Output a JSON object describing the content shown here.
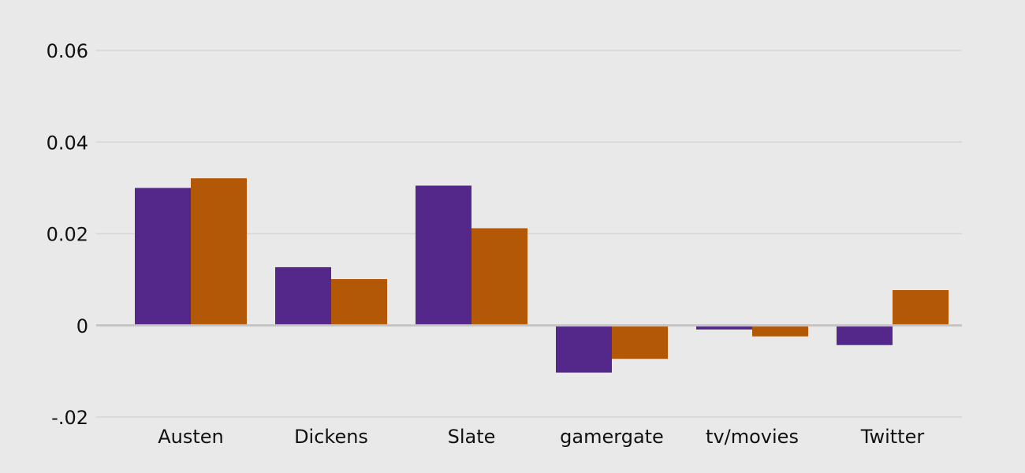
{
  "chart_data": {
    "type": "bar",
    "categories": [
      "Austen",
      "Dickens",
      "Slate",
      "gamergate",
      "tv/movies",
      "Twitter"
    ],
    "series": [
      {
        "values": [
          0.03,
          0.0127,
          0.0305,
          -0.0103,
          -0.0009,
          -0.0043
        ],
        "color": "#54288a"
      },
      {
        "values": [
          0.0321,
          0.0101,
          0.0212,
          -0.0073,
          -0.0024,
          0.0077
        ],
        "color": "#b35806"
      }
    ],
    "y_ticks": [
      {
        "value": -0.02,
        "label": "-.02"
      },
      {
        "value": 0,
        "label": "0"
      },
      {
        "value": 0.02,
        "label": "0.02"
      },
      {
        "value": 0.04,
        "label": "0.04"
      },
      {
        "value": 0.06,
        "label": "0.06"
      }
    ],
    "ylim": [
      -0.02,
      0.06
    ],
    "grid": true,
    "background": "#e9e9e9"
  }
}
